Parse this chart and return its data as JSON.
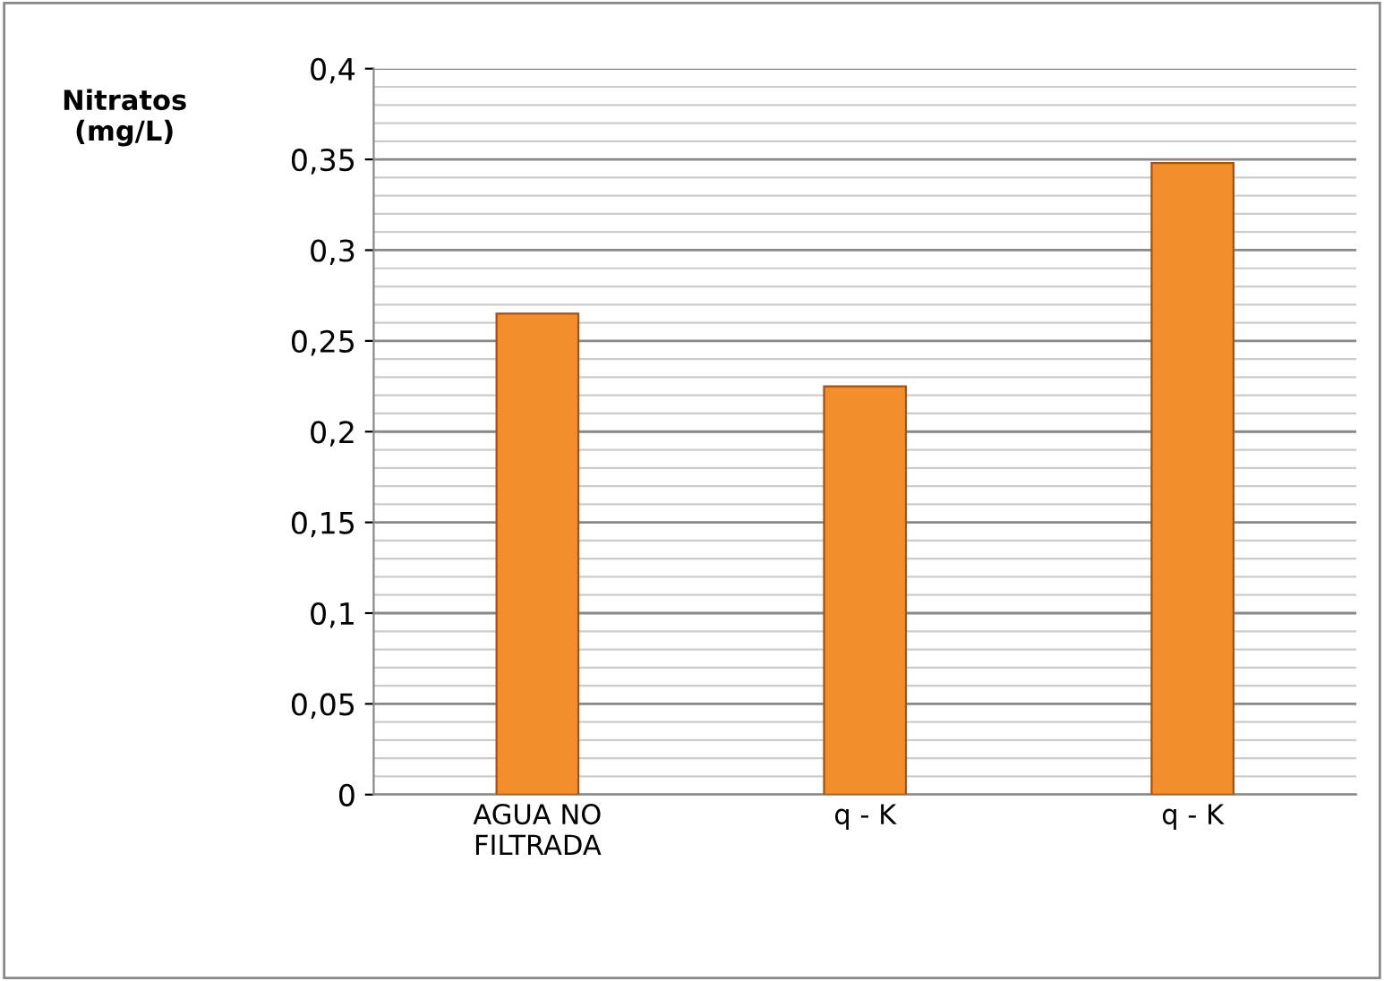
{
  "chart_data": {
    "type": "bar",
    "ylabel": "Nitratos\n(mg/L)",
    "categories": [
      "AGUA NO\nFILTRADA",
      "q - K",
      "q - K"
    ],
    "values": [
      0.265,
      0.225,
      0.348
    ],
    "color": "#f28e2b",
    "ylim": [
      0,
      0.4
    ],
    "yticks": [
      {
        "value": 0,
        "label": "0"
      },
      {
        "value": 0.05,
        "label": "0,05"
      },
      {
        "value": 0.1,
        "label": "0,1"
      },
      {
        "value": 0.15,
        "label": "0,15"
      },
      {
        "value": 0.2,
        "label": "0,2"
      },
      {
        "value": 0.25,
        "label": "0,25"
      },
      {
        "value": 0.3,
        "label": "0,3"
      },
      {
        "value": 0.35,
        "label": "0,35"
      },
      {
        "value": 0.4,
        "label": "0,4"
      }
    ],
    "grid": "y"
  }
}
